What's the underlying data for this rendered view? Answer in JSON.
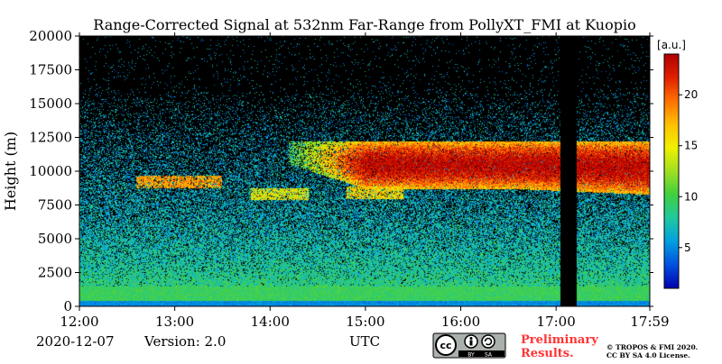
{
  "chart_data": {
    "type": "heatmap",
    "title": "Range-Corrected Signal at 532nm Far-Range from PollyXT_FMI at Kuopio",
    "xlabel": "UTC",
    "ylabel": "Height (m)",
    "xlim_hours": [
      12.0,
      17.983
    ],
    "ylim": [
      0,
      20000
    ],
    "x_ticks": [
      {
        "value": 12.0,
        "label": "12:00"
      },
      {
        "value": 13.0,
        "label": "13:00"
      },
      {
        "value": 14.0,
        "label": "14:00"
      },
      {
        "value": 15.0,
        "label": "15:00"
      },
      {
        "value": 16.0,
        "label": "16:00"
      },
      {
        "value": 17.0,
        "label": "17:00"
      },
      {
        "value": 17.983,
        "label": "17:59"
      }
    ],
    "y_ticks": [
      0,
      2500,
      5000,
      7500,
      10000,
      12500,
      15000,
      17500,
      20000
    ],
    "colorbar": {
      "label": "[a.u.]",
      "range": [
        1,
        24
      ],
      "ticks": [
        5,
        10,
        15,
        20
      ],
      "colors": [
        "#0000b0",
        "#0050e0",
        "#00a0e0",
        "#20c8a0",
        "#40d040",
        "#a0e020",
        "#f0f000",
        "#ffc000",
        "#ff7000",
        "#e02000",
        "#b00000"
      ]
    },
    "data_gap": {
      "start_hours": 17.05,
      "end_hours": 17.22
    },
    "features": [
      {
        "type": "cloud_layer",
        "start_hours": 14.2,
        "end_hours": 17.98,
        "base_m": 8700,
        "top_m": 12200,
        "peak_intensity": 24
      },
      {
        "type": "thin_layer",
        "start_hours": 12.6,
        "end_hours": 13.5,
        "height_m": 9200,
        "intensity": 18
      },
      {
        "type": "thin_layer",
        "start_hours": 13.8,
        "end_hours": 14.4,
        "height_m": 8300,
        "intensity": 15
      },
      {
        "type": "thin_layer",
        "start_hours": 14.8,
        "end_hours": 15.4,
        "height_m": 8400,
        "intensity": 16
      },
      {
        "type": "boundary_layer",
        "top_m": 1500,
        "intensity": 10
      }
    ]
  },
  "footer": {
    "date": "2020-12-07",
    "version": "Version: 2.0",
    "preliminary_line1": "Preliminary",
    "preliminary_line2": "Results.",
    "copyright_line1": "© TROPOS & FMI 2020.",
    "copyright_line2": "CC BY SA 4.0 License.",
    "license_badge": {
      "cc": "cc",
      "by": "BY",
      "sa": "SA"
    }
  },
  "colors": {
    "preliminary": "#ff3333",
    "gap": "#000000"
  }
}
